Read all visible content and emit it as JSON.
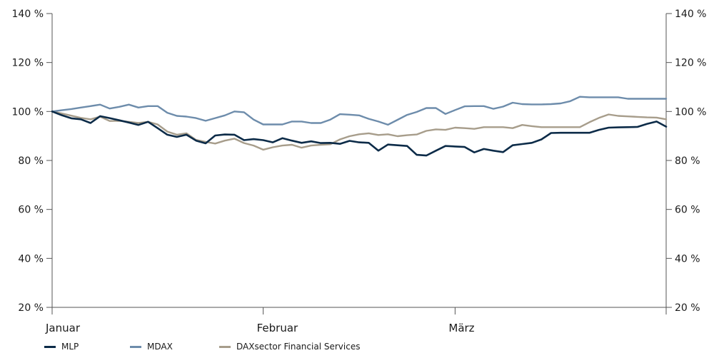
{
  "chart_data": {
    "type": "line",
    "y_axis": {
      "min": 20,
      "max": 140,
      "step": 20,
      "tick_labels": [
        "20 %",
        "40 %",
        "60 %",
        "80 %",
        "100 %",
        "120 %",
        "140 %"
      ],
      "mirrored_right": true
    },
    "x_axis": {
      "labels": [
        "Januar",
        "Februar",
        "März"
      ],
      "points_per_month": [
        22,
        20,
        23
      ]
    },
    "grid": false,
    "legend_position": "bottom-left",
    "series": [
      {
        "name": "MLP",
        "color": "#0c2b48",
        "values": [
          100,
          98.5,
          97.2,
          96.8,
          95.3,
          98.1,
          97.3,
          96.4,
          95.5,
          94.5,
          95.8,
          93.2,
          90.5,
          89.6,
          90.5,
          88.1,
          87.0,
          90.2,
          90.6,
          90.5,
          88.3,
          88.7,
          88.3,
          87.4,
          89.1,
          88.1,
          87.2,
          87.8,
          87.1,
          87.2,
          86.8,
          88.0,
          87.4,
          87.2,
          84.0,
          86.5,
          86.2,
          85.9,
          82.3,
          82.0,
          84.0,
          85.9,
          85.7,
          85.5,
          83.3,
          84.7,
          84.0,
          83.4,
          86.2,
          86.7,
          87.2,
          88.6,
          91.2,
          91.3,
          91.3,
          91.3,
          91.3,
          92.5,
          93.4,
          93.5,
          93.6,
          93.7,
          94.9,
          95.9,
          93.8
        ]
      },
      {
        "name": "MDAX",
        "color": "#6d8cab",
        "values": [
          100,
          100.5,
          101.0,
          101.6,
          102.2,
          102.8,
          101.2,
          101.9,
          102.8,
          101.6,
          102.2,
          102.2,
          99.5,
          98.2,
          97.9,
          97.3,
          96.2,
          97.3,
          98.4,
          100.0,
          99.7,
          96.7,
          94.7,
          94.7,
          94.7,
          95.9,
          95.9,
          95.3,
          95.3,
          96.7,
          98.9,
          98.7,
          98.4,
          97.0,
          95.9,
          94.6,
          96.6,
          98.6,
          99.8,
          101.4,
          101.4,
          99.0,
          100.6,
          102.1,
          102.2,
          102.2,
          101.1,
          102.0,
          103.6,
          103.0,
          102.9,
          102.9,
          103.0,
          103.3,
          104.2,
          106.0,
          105.8,
          105.8,
          105.8,
          105.8,
          105.2,
          105.2,
          105.2,
          105.2,
          105.2
        ]
      },
      {
        "name": "DAXsector Financial Services",
        "color": "#a79d8b",
        "values": [
          100,
          99.2,
          98.3,
          97.4,
          96.8,
          97.9,
          96.1,
          96.2,
          95.8,
          95.3,
          95.8,
          94.7,
          91.8,
          90.5,
          91.1,
          88.4,
          87.6,
          86.9,
          88.1,
          88.9,
          87.1,
          86.1,
          84.4,
          85.4,
          86.1,
          86.4,
          85.2,
          86.1,
          86.4,
          86.6,
          88.6,
          89.9,
          90.7,
          91.1,
          90.4,
          90.7,
          89.9,
          90.3,
          90.6,
          92.1,
          92.7,
          92.5,
          93.4,
          93.2,
          92.9,
          93.6,
          93.6,
          93.6,
          93.2,
          94.5,
          94.0,
          93.6,
          93.6,
          93.6,
          93.6,
          93.6,
          95.6,
          97.4,
          98.8,
          98.2,
          98.0,
          97.8,
          97.6,
          97.5,
          96.8
        ]
      }
    ]
  }
}
